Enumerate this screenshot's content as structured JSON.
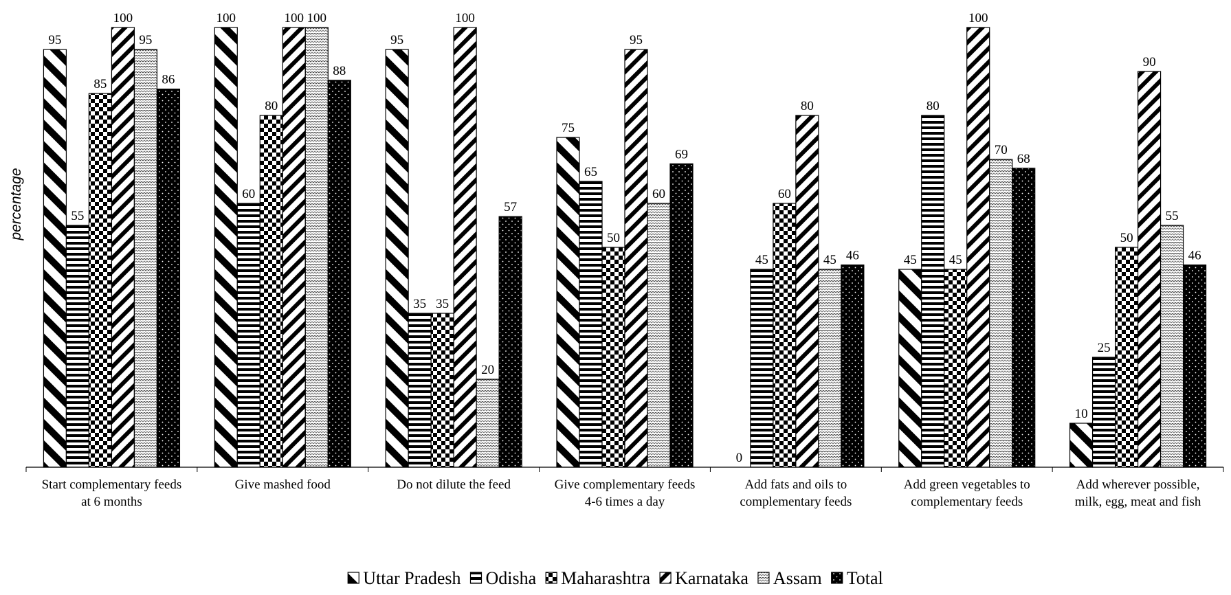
{
  "chart_data": {
    "type": "bar",
    "title": "",
    "xlabel": "",
    "ylabel": "percentage",
    "ylim": [
      0,
      100
    ],
    "grid": false,
    "legend_position": "bottom",
    "categories": [
      [
        "Start  complementary feeds",
        "at 6 months"
      ],
      [
        "Give mashed food"
      ],
      [
        "Do not dilute the feed"
      ],
      [
        "Give complementary feeds",
        "4-6 times a day"
      ],
      [
        "Add fats and oils to",
        "complementary feeds"
      ],
      [
        "Add green vegetables to",
        "complementary feeds"
      ],
      [
        "Add wherever possible,",
        "milk, egg, meat and fish"
      ]
    ],
    "series": [
      {
        "name": "Uttar Pradesh",
        "pattern": "diag-back",
        "values": [
          95,
          100,
          95,
          75,
          0,
          45,
          10
        ]
      },
      {
        "name": "Odisha",
        "pattern": "horizontal",
        "values": [
          55,
          60,
          35,
          65,
          45,
          80,
          25
        ]
      },
      {
        "name": "Maharashtra",
        "pattern": "checker",
        "values": [
          85,
          80,
          35,
          50,
          60,
          45,
          50
        ]
      },
      {
        "name": "Karnataka",
        "pattern": "diag-fwd",
        "values": [
          100,
          100,
          100,
          95,
          80,
          100,
          90
        ]
      },
      {
        "name": "Assam",
        "pattern": "light-wave",
        "values": [
          95,
          100,
          20,
          60,
          45,
          70,
          55
        ]
      },
      {
        "name": "Total",
        "pattern": "dots",
        "values": [
          86,
          88,
          57,
          69,
          46,
          68,
          46
        ]
      }
    ],
    "colors": {
      "ink": "#000000",
      "paper": "#ffffff"
    }
  }
}
